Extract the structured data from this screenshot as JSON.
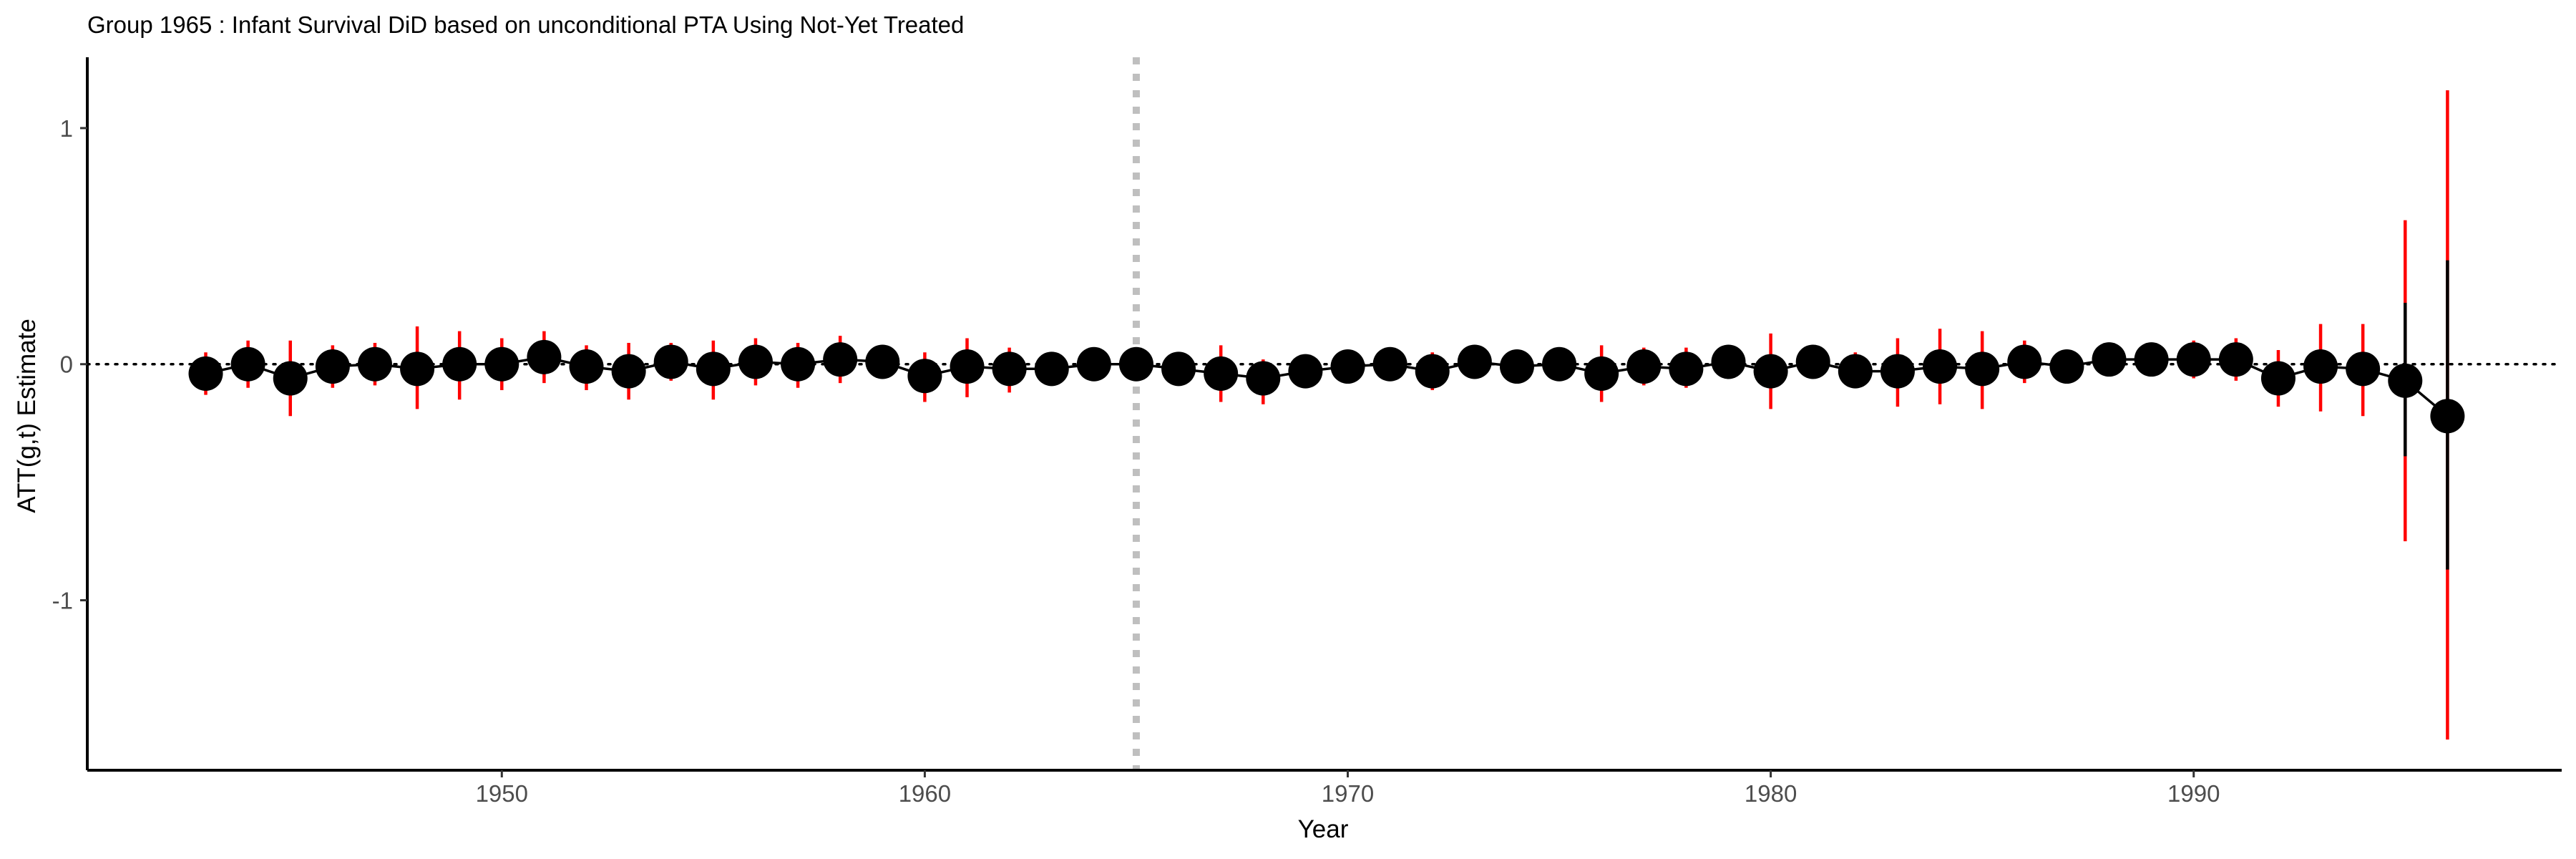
{
  "chart_data": {
    "type": "scatter",
    "title": "Group 1965 : Infant Survival DiD based on unconditional PTA Using Not-Yet Treated",
    "xlabel": "Year",
    "ylabel": "ATT(g,t) Estimate",
    "xlim": [
      1940.2,
      1998.7
    ],
    "ylim": [
      -1.72,
      1.3
    ],
    "xticks": [
      1950,
      1960,
      1970,
      1980,
      1990
    ],
    "yticks": [
      -1,
      0,
      1
    ],
    "ytick_labels": [
      "-1",
      "0",
      "1"
    ],
    "treatment_year": 1965,
    "reference_line_y": 0,
    "grid": false,
    "legend": "none",
    "colors": {
      "point": "#000000",
      "line": "#000000",
      "ci_outer": "#ff0000",
      "ci_inner": "#000000",
      "vline": "#bfbfbf",
      "axis": "#000000"
    },
    "series": [
      {
        "x": [
          1943,
          1944,
          1945,
          1946,
          1947,
          1948,
          1949,
          1950,
          1951,
          1952,
          1953,
          1954,
          1955,
          1956,
          1957,
          1958,
          1959,
          1960,
          1961,
          1962,
          1963,
          1964,
          1965,
          1966,
          1967,
          1968,
          1969,
          1970,
          1971,
          1972,
          1973,
          1974,
          1975,
          1976,
          1977,
          1978,
          1979,
          1980,
          1981,
          1982,
          1983,
          1984,
          1985,
          1986,
          1987,
          1988,
          1989,
          1990,
          1991,
          1992,
          1993,
          1994,
          1995,
          1996
        ],
        "y": [
          -0.04,
          0.0,
          -0.06,
          -0.01,
          0.0,
          -0.02,
          0.0,
          0.0,
          0.03,
          -0.01,
          -0.03,
          0.01,
          -0.02,
          0.01,
          0.0,
          0.02,
          0.01,
          -0.05,
          -0.01,
          -0.02,
          -0.02,
          0.0,
          0.0,
          -0.02,
          -0.04,
          -0.06,
          -0.03,
          -0.01,
          0.0,
          -0.03,
          0.01,
          -0.01,
          0.0,
          -0.04,
          -0.01,
          -0.02,
          0.01,
          -0.03,
          0.01,
          -0.03,
          -0.03,
          -0.01,
          -0.02,
          0.01,
          -0.01,
          0.02,
          0.02,
          0.02,
          0.02,
          -0.06,
          -0.01,
          -0.02,
          -0.07,
          -0.22
        ],
        "ci_lower": [
          -0.13,
          -0.1,
          -0.22,
          -0.1,
          -0.09,
          -0.19,
          -0.15,
          -0.11,
          -0.08,
          -0.11,
          -0.15,
          -0.07,
          -0.15,
          -0.09,
          -0.1,
          -0.08,
          -0.06,
          -0.16,
          -0.14,
          -0.12,
          -0.08,
          -0.06,
          -0.05,
          -0.08,
          -0.16,
          -0.17,
          -0.08,
          -0.06,
          -0.06,
          -0.11,
          -0.05,
          -0.08,
          -0.06,
          -0.16,
          -0.09,
          -0.1,
          -0.05,
          -0.19,
          -0.05,
          -0.1,
          -0.18,
          -0.17,
          -0.19,
          -0.08,
          -0.07,
          -0.04,
          -0.04,
          -0.06,
          -0.07,
          -0.18,
          -0.2,
          -0.22,
          -0.75,
          -1.59
        ],
        "ci_upper": [
          0.05,
          0.1,
          0.1,
          0.08,
          0.09,
          0.16,
          0.14,
          0.11,
          0.14,
          0.08,
          0.09,
          0.09,
          0.1,
          0.11,
          0.09,
          0.12,
          0.08,
          0.05,
          0.11,
          0.07,
          0.04,
          0.06,
          0.05,
          0.04,
          0.08,
          0.02,
          0.02,
          0.04,
          0.06,
          0.05,
          0.06,
          0.06,
          0.06,
          0.08,
          0.07,
          0.07,
          0.07,
          0.13,
          0.07,
          0.05,
          0.11,
          0.15,
          0.14,
          0.1,
          0.05,
          0.08,
          0.07,
          0.1,
          0.11,
          0.06,
          0.17,
          0.17,
          0.61,
          1.16
        ],
        "ci_inner_lower": [
          -0.04,
          0.0,
          -0.06,
          -0.01,
          0.0,
          -0.02,
          0.0,
          0.0,
          0.03,
          -0.01,
          -0.03,
          0.01,
          -0.02,
          0.01,
          0.0,
          0.02,
          0.01,
          -0.05,
          -0.01,
          -0.02,
          -0.02,
          0.0,
          0.0,
          -0.02,
          -0.04,
          -0.06,
          -0.03,
          -0.01,
          0.0,
          -0.03,
          0.01,
          -0.01,
          0.0,
          -0.04,
          -0.01,
          -0.02,
          0.01,
          -0.03,
          0.01,
          -0.03,
          -0.03,
          -0.01,
          -0.02,
          0.01,
          -0.01,
          0.02,
          0.02,
          0.02,
          0.02,
          -0.06,
          -0.01,
          -0.02,
          -0.39,
          -0.87
        ],
        "ci_inner_upper": [
          -0.04,
          0.0,
          -0.06,
          -0.01,
          0.0,
          -0.02,
          0.0,
          0.0,
          0.03,
          -0.01,
          -0.03,
          0.01,
          -0.02,
          0.01,
          0.0,
          0.02,
          0.01,
          -0.05,
          -0.01,
          -0.02,
          -0.02,
          0.0,
          0.0,
          -0.02,
          -0.04,
          -0.06,
          -0.03,
          -0.01,
          0.0,
          -0.03,
          0.01,
          -0.01,
          0.0,
          -0.04,
          -0.01,
          -0.02,
          0.01,
          -0.03,
          0.01,
          -0.03,
          -0.03,
          -0.01,
          -0.02,
          0.01,
          -0.01,
          0.02,
          0.02,
          0.02,
          0.02,
          -0.06,
          -0.01,
          -0.02,
          0.26,
          0.44
        ]
      }
    ]
  }
}
